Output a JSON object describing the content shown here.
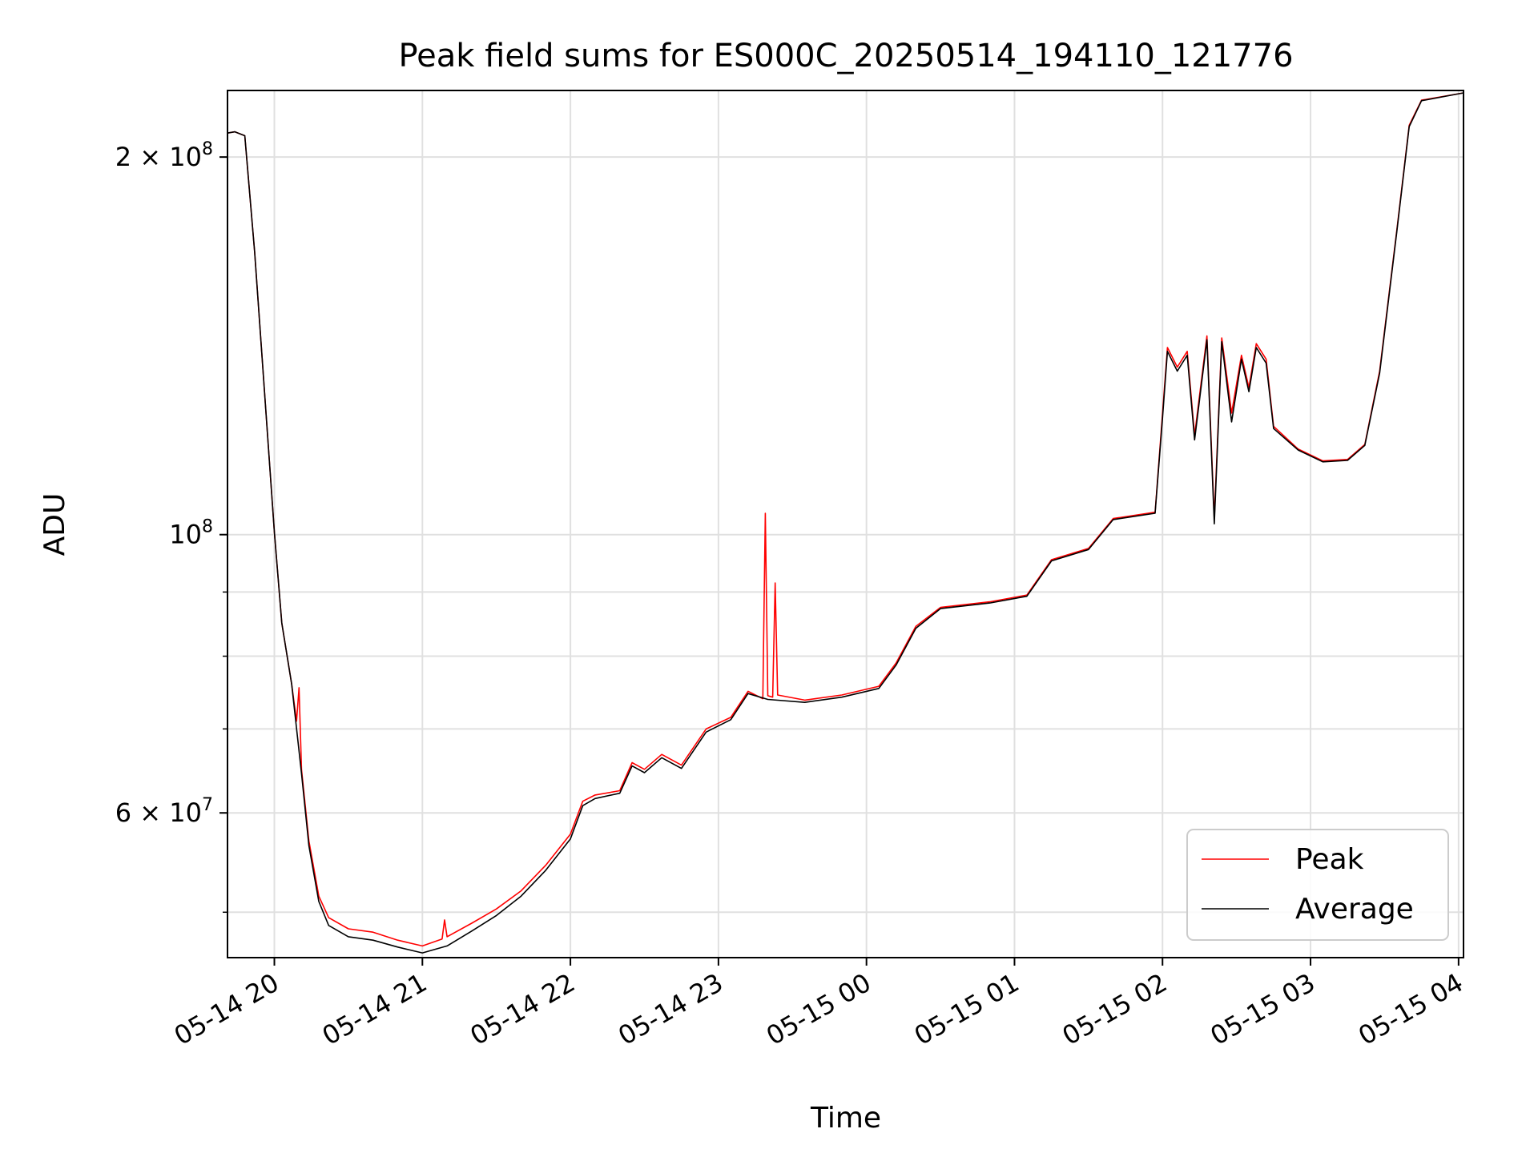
{
  "chart_data": {
    "type": "line",
    "title": "Peak field sums for ES000C_20250514_194110_121776",
    "xlabel": "Time",
    "ylabel": "ADU",
    "y_scale": "log",
    "ylim": [
      46000000,
      226000000
    ],
    "xlim": [
      "2025-05-14 19:41",
      "2025-05-15 04:02"
    ],
    "grid": true,
    "legend_position": "lower right",
    "x_ticks": [
      {
        "value": "2025-05-14 20:00",
        "label": "05-14 20"
      },
      {
        "value": "2025-05-14 21:00",
        "label": "05-14 21"
      },
      {
        "value": "2025-05-14 22:00",
        "label": "05-14 22"
      },
      {
        "value": "2025-05-14 23:00",
        "label": "05-14 23"
      },
      {
        "value": "2025-05-15 00:00",
        "label": "05-15 00"
      },
      {
        "value": "2025-05-15 01:00",
        "label": "05-15 01"
      },
      {
        "value": "2025-05-15 02:00",
        "label": "05-15 02"
      },
      {
        "value": "2025-05-15 03:00",
        "label": "05-15 03"
      },
      {
        "value": "2025-05-15 04:00",
        "label": "05-15 04"
      }
    ],
    "y_major_ticks": [
      {
        "value": 60000000,
        "mantissa": "6",
        "exponent": "7"
      },
      {
        "value": 100000000,
        "mantissa": "",
        "exponent": "8"
      },
      {
        "value": 200000000,
        "mantissa": "2",
        "exponent": "8"
      }
    ],
    "y_minor_ticks": [
      50000000,
      70000000,
      80000000,
      90000000
    ],
    "series": [
      {
        "name": "Peak",
        "color": "#ff0000",
        "points": [
          [
            "2025-05-14 19:41",
            209000000
          ],
          [
            "2025-05-14 19:44",
            209500000
          ],
          [
            "2025-05-14 19:48",
            208000000
          ],
          [
            "2025-05-14 19:52",
            168000000
          ],
          [
            "2025-05-14 19:56",
            130000000
          ],
          [
            "2025-05-14 20:00",
            100500000
          ],
          [
            "2025-05-14 20:03",
            85000000
          ],
          [
            "2025-05-14 20:07",
            76000000
          ],
          [
            "2025-05-14 20:09",
            71000000
          ],
          [
            "2025-05-14 20:10",
            75500000
          ],
          [
            "2025-05-14 20:11",
            65000000
          ],
          [
            "2025-05-14 20:14",
            57000000
          ],
          [
            "2025-05-14 20:18",
            51500000
          ],
          [
            "2025-05-14 20:22",
            49500000
          ],
          [
            "2025-05-14 20:30",
            48500000
          ],
          [
            "2025-05-14 20:40",
            48200000
          ],
          [
            "2025-05-14 20:50",
            47500000
          ],
          [
            "2025-05-14 21:00",
            47000000
          ],
          [
            "2025-05-14 21:08",
            47600000
          ],
          [
            "2025-05-14 21:09",
            49300000
          ],
          [
            "2025-05-14 21:10",
            47800000
          ],
          [
            "2025-05-14 21:20",
            49000000
          ],
          [
            "2025-05-14 21:30",
            50300000
          ],
          [
            "2025-05-14 21:40",
            52000000
          ],
          [
            "2025-05-14 21:50",
            54500000
          ],
          [
            "2025-05-14 22:00",
            57700000
          ],
          [
            "2025-05-14 22:05",
            61300000
          ],
          [
            "2025-05-14 22:10",
            62000000
          ],
          [
            "2025-05-14 22:20",
            62500000
          ],
          [
            "2025-05-14 22:25",
            65800000
          ],
          [
            "2025-05-14 22:30",
            65000000
          ],
          [
            "2025-05-14 22:37",
            66800000
          ],
          [
            "2025-05-14 22:45",
            65500000
          ],
          [
            "2025-05-14 22:55",
            70000000
          ],
          [
            "2025-05-14 23:05",
            71500000
          ],
          [
            "2025-05-14 23:12",
            75000000
          ],
          [
            "2025-05-14 23:18",
            74000000
          ],
          [
            "2025-05-14 23:19",
            104000000
          ],
          [
            "2025-05-14 23:20",
            74400000
          ],
          [
            "2025-05-14 23:22",
            74200000
          ],
          [
            "2025-05-14 23:23",
            91500000
          ],
          [
            "2025-05-14 23:24",
            74500000
          ],
          [
            "2025-05-14 23:35",
            73800000
          ],
          [
            "2025-05-14 23:50",
            74500000
          ],
          [
            "2025-05-15 00:05",
            75700000
          ],
          [
            "2025-05-15 00:12",
            79000000
          ],
          [
            "2025-05-15 00:20",
            84500000
          ],
          [
            "2025-05-15 00:30",
            87500000
          ],
          [
            "2025-05-15 00:50",
            88400000
          ],
          [
            "2025-05-15 01:05",
            89500000
          ],
          [
            "2025-05-15 01:15",
            95500000
          ],
          [
            "2025-05-15 01:30",
            97500000
          ],
          [
            "2025-05-15 01:40",
            103000000
          ],
          [
            "2025-05-15 01:57",
            104200000
          ],
          [
            "2025-05-15 02:00",
            125000000
          ],
          [
            "2025-05-15 02:02",
            141000000
          ],
          [
            "2025-05-15 02:06",
            136000000
          ],
          [
            "2025-05-15 02:10",
            140000000
          ],
          [
            "2025-05-15 02:13",
            120000000
          ],
          [
            "2025-05-15 02:18",
            144000000
          ],
          [
            "2025-05-15 02:21",
            103000000
          ],
          [
            "2025-05-15 02:24",
            143500000
          ],
          [
            "2025-05-15 02:28",
            125000000
          ],
          [
            "2025-05-15 02:32",
            139000000
          ],
          [
            "2025-05-15 02:35",
            131000000
          ],
          [
            "2025-05-15 02:38",
            142000000
          ],
          [
            "2025-05-15 02:42",
            138000000
          ],
          [
            "2025-05-15 02:45",
            122000000
          ],
          [
            "2025-05-15 02:55",
            117000000
          ],
          [
            "2025-05-15 03:05",
            114500000
          ],
          [
            "2025-05-15 03:15",
            114800000
          ],
          [
            "2025-05-15 03:22",
            118000000
          ],
          [
            "2025-05-15 03:28",
            135000000
          ],
          [
            "2025-05-15 03:35",
            175000000
          ],
          [
            "2025-05-15 03:40",
            212000000
          ],
          [
            "2025-05-15 03:45",
            222000000
          ],
          [
            "2025-05-15 04:02",
            225000000
          ]
        ]
      },
      {
        "name": "Average",
        "color": "#000000",
        "points": [
          [
            "2025-05-14 19:41",
            209000000
          ],
          [
            "2025-05-14 19:44",
            209500000
          ],
          [
            "2025-05-14 19:48",
            208000000
          ],
          [
            "2025-05-14 19:52",
            168000000
          ],
          [
            "2025-05-14 19:56",
            130000000
          ],
          [
            "2025-05-14 20:00",
            100500000
          ],
          [
            "2025-05-14 20:03",
            85000000
          ],
          [
            "2025-05-14 20:07",
            76000000
          ],
          [
            "2025-05-14 20:11",
            64500000
          ],
          [
            "2025-05-14 20:14",
            56500000
          ],
          [
            "2025-05-14 20:18",
            51000000
          ],
          [
            "2025-05-14 20:22",
            48800000
          ],
          [
            "2025-05-14 20:30",
            47800000
          ],
          [
            "2025-05-14 20:40",
            47500000
          ],
          [
            "2025-05-14 20:50",
            46900000
          ],
          [
            "2025-05-14 21:00",
            46400000
          ],
          [
            "2025-05-14 21:10",
            47000000
          ],
          [
            "2025-05-14 21:20",
            48300000
          ],
          [
            "2025-05-14 21:30",
            49700000
          ],
          [
            "2025-05-14 21:40",
            51500000
          ],
          [
            "2025-05-14 21:50",
            54000000
          ],
          [
            "2025-05-14 22:00",
            57200000
          ],
          [
            "2025-05-14 22:05",
            60800000
          ],
          [
            "2025-05-14 22:10",
            61600000
          ],
          [
            "2025-05-14 22:20",
            62200000
          ],
          [
            "2025-05-14 22:25",
            65400000
          ],
          [
            "2025-05-14 22:30",
            64600000
          ],
          [
            "2025-05-14 22:37",
            66400000
          ],
          [
            "2025-05-14 22:45",
            65100000
          ],
          [
            "2025-05-14 22:55",
            69600000
          ],
          [
            "2025-05-14 23:05",
            71200000
          ],
          [
            "2025-05-14 23:12",
            74700000
          ],
          [
            "2025-05-14 23:20",
            73900000
          ],
          [
            "2025-05-14 23:35",
            73500000
          ],
          [
            "2025-05-14 23:50",
            74200000
          ],
          [
            "2025-05-15 00:05",
            75400000
          ],
          [
            "2025-05-15 00:12",
            78700000
          ],
          [
            "2025-05-15 00:20",
            84200000
          ],
          [
            "2025-05-15 00:30",
            87300000
          ],
          [
            "2025-05-15 00:50",
            88200000
          ],
          [
            "2025-05-15 01:05",
            89300000
          ],
          [
            "2025-05-15 01:15",
            95300000
          ],
          [
            "2025-05-15 01:30",
            97300000
          ],
          [
            "2025-05-15 01:40",
            102800000
          ],
          [
            "2025-05-15 01:57",
            104000000
          ],
          [
            "2025-05-15 02:00",
            124000000
          ],
          [
            "2025-05-15 02:02",
            140000000
          ],
          [
            "2025-05-15 02:06",
            135000000
          ],
          [
            "2025-05-15 02:10",
            139000000
          ],
          [
            "2025-05-15 02:13",
            119000000
          ],
          [
            "2025-05-15 02:18",
            143000000
          ],
          [
            "2025-05-15 02:21",
            102000000
          ],
          [
            "2025-05-15 02:24",
            142500000
          ],
          [
            "2025-05-15 02:28",
            123000000
          ],
          [
            "2025-05-15 02:32",
            138000000
          ],
          [
            "2025-05-15 02:35",
            130000000
          ],
          [
            "2025-05-15 02:38",
            141000000
          ],
          [
            "2025-05-15 02:42",
            137000000
          ],
          [
            "2025-05-15 02:45",
            121500000
          ],
          [
            "2025-05-15 02:55",
            116800000
          ],
          [
            "2025-05-15 03:05",
            114300000
          ],
          [
            "2025-05-15 03:15",
            114600000
          ],
          [
            "2025-05-15 03:22",
            117800000
          ],
          [
            "2025-05-15 03:28",
            134500000
          ],
          [
            "2025-05-15 03:35",
            174500000
          ],
          [
            "2025-05-15 03:40",
            211500000
          ],
          [
            "2025-05-15 03:45",
            221800000
          ],
          [
            "2025-05-15 04:02",
            225000000
          ]
        ]
      }
    ]
  }
}
